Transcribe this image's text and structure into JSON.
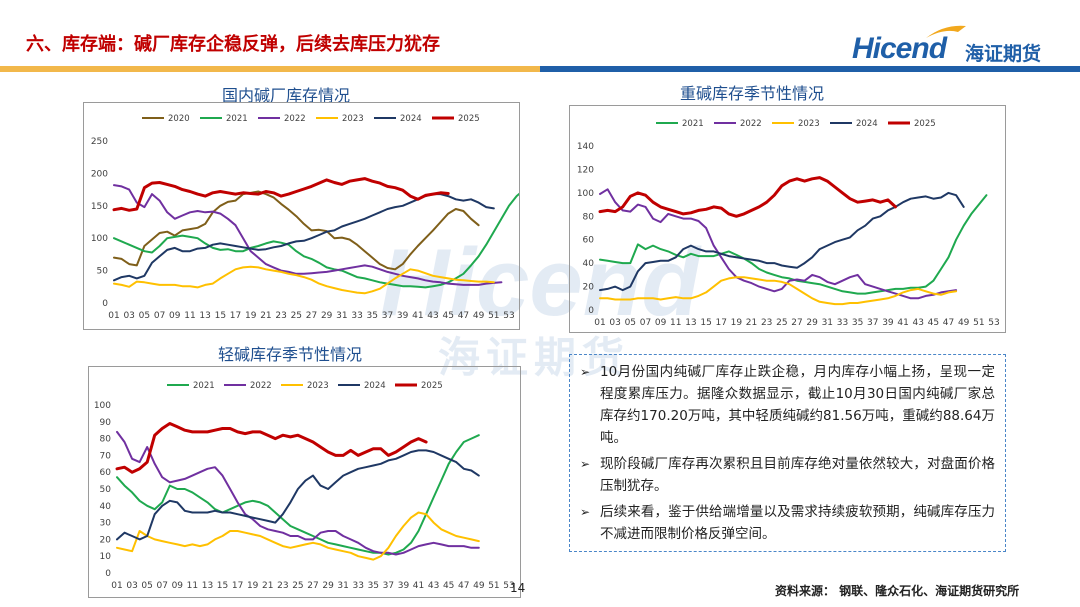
{
  "header": {
    "title": "六、库存端：碱厂库存企稳反弹，后续去库压力犹存",
    "logo_en": "Hicend",
    "logo_cn": "海证期货"
  },
  "watermark": {
    "en": "Hicend",
    "cn": "海证期货"
  },
  "colors": {
    "2020": "#7f5f1a",
    "2021": "#1fa94f",
    "2022": "#7030a0",
    "2023": "#ffc000",
    "2024": "#1f3864",
    "2025": "#c00000",
    "title_red": "#c00000",
    "brand_blue": "#1f5fa8",
    "bar_gold": "#f2b84b"
  },
  "chart_data": [
    {
      "type": "line",
      "title": "国内碱厂库存情况",
      "ylim": [
        0,
        250
      ],
      "yticks": [
        0,
        50,
        100,
        150,
        200,
        250
      ],
      "xticks": [
        "01",
        "03",
        "05",
        "07",
        "09",
        "11",
        "13",
        "15",
        "17",
        "19",
        "21",
        "23",
        "25",
        "27",
        "29",
        "31",
        "33",
        "35",
        "37",
        "39",
        "41",
        "43",
        "45",
        "47",
        "49",
        "51",
        "53"
      ],
      "legend": [
        "2020",
        "2021",
        "2022",
        "2023",
        "2024",
        "2025"
      ],
      "series": [
        {
          "name": "2020",
          "values": [
            70,
            68,
            60,
            58,
            88,
            98,
            108,
            110,
            104,
            112,
            114,
            116,
            122,
            140,
            150,
            156,
            158,
            168,
            170,
            172,
            168,
            163,
            153,
            144,
            134,
            122,
            112,
            113,
            111,
            100,
            101,
            98,
            90,
            80,
            70,
            60,
            54,
            52,
            60,
            75,
            88,
            100,
            112,
            125,
            138,
            145,
            142,
            130,
            120
          ]
        },
        {
          "name": "2021",
          "values": [
            100,
            95,
            90,
            85,
            80,
            78,
            88,
            100,
            102,
            104,
            102,
            100,
            92,
            85,
            82,
            83,
            80,
            80,
            85,
            88,
            92,
            95,
            93,
            90,
            80,
            72,
            68,
            62,
            55,
            52,
            50,
            45,
            40,
            38,
            35,
            32,
            30,
            28,
            26,
            26,
            25,
            24,
            26,
            28,
            32,
            38,
            45,
            58,
            72,
            90,
            110,
            130,
            150,
            165,
            175,
            182
          ]
        },
        {
          "name": "2022",
          "values": [
            182,
            180,
            175,
            155,
            148,
            168,
            158,
            140,
            130,
            135,
            140,
            142,
            140,
            141,
            138,
            130,
            120,
            100,
            80,
            70,
            60,
            55,
            50,
            48,
            45,
            45,
            46,
            47,
            48,
            50,
            52,
            54,
            56,
            58,
            56,
            52,
            48,
            45,
            42,
            40,
            38,
            35,
            33,
            32,
            30,
            29,
            28,
            28,
            28,
            30,
            31,
            32
          ]
        },
        {
          "name": "2023",
          "values": [
            30,
            28,
            25,
            33,
            32,
            30,
            28,
            28,
            28,
            26,
            26,
            24,
            28,
            30,
            38,
            45,
            52,
            55,
            56,
            55,
            52,
            50,
            48,
            45,
            43,
            40,
            36,
            30,
            26,
            23,
            20,
            18,
            16,
            15,
            18,
            22,
            30,
            38,
            45,
            52,
            50,
            46,
            42,
            40,
            38,
            36,
            35,
            34,
            33,
            33,
            32
          ]
        },
        {
          "name": "2024",
          "values": [
            35,
            40,
            42,
            38,
            42,
            62,
            72,
            82,
            85,
            80,
            80,
            84,
            85,
            90,
            92,
            90,
            88,
            86,
            84,
            82,
            83,
            86,
            88,
            92,
            95,
            96,
            100,
            105,
            110,
            112,
            118,
            122,
            126,
            130,
            135,
            140,
            145,
            148,
            150,
            155,
            160,
            165,
            168,
            168,
            165,
            160,
            158,
            160,
            155,
            148,
            146
          ]
        },
        {
          "name": "2025",
          "values": [
            144,
            146,
            143,
            145,
            178,
            185,
            186,
            183,
            180,
            175,
            172,
            168,
            165,
            170,
            172,
            170,
            168,
            170,
            169,
            168,
            172,
            170,
            165,
            168,
            172,
            176,
            180,
            185,
            190,
            186,
            183,
            188,
            190,
            192,
            188,
            185,
            180,
            178,
            174,
            165,
            160,
            166,
            168,
            170,
            169
          ]
        }
      ]
    },
    {
      "type": "line",
      "title": "重碱库存季节性情况",
      "ylim": [
        0,
        140
      ],
      "yticks": [
        0,
        20,
        40,
        60,
        80,
        100,
        120,
        140
      ],
      "xticks": [
        "01",
        "03",
        "05",
        "07",
        "09",
        "11",
        "13",
        "15",
        "17",
        "19",
        "21",
        "23",
        "25",
        "27",
        "29",
        "31",
        "33",
        "35",
        "37",
        "39",
        "41",
        "43",
        "45",
        "47",
        "49",
        "51",
        "53"
      ],
      "legend": [
        "2021",
        "2022",
        "2023",
        "2024",
        "2025"
      ],
      "series": [
        {
          "name": "2021",
          "values": [
            43,
            42,
            41,
            40,
            40,
            56,
            52,
            55,
            52,
            50,
            47,
            45,
            48,
            46,
            46,
            46,
            48,
            50,
            47,
            44,
            40,
            35,
            32,
            30,
            28,
            27,
            25,
            24,
            23,
            22,
            20,
            18,
            16,
            15,
            14,
            14,
            15,
            16,
            17,
            18,
            18,
            19,
            19,
            20,
            25,
            35,
            45,
            60,
            72,
            82,
            90,
            98
          ]
        },
        {
          "name": "2022",
          "values": [
            99,
            103,
            92,
            85,
            84,
            90,
            88,
            78,
            75,
            82,
            80,
            78,
            78,
            76,
            70,
            55,
            45,
            35,
            28,
            25,
            23,
            20,
            18,
            16,
            18,
            25,
            26,
            25,
            30,
            28,
            24,
            22,
            25,
            28,
            30,
            22,
            20,
            18,
            16,
            14,
            12,
            10,
            10,
            12,
            13,
            15,
            16,
            17
          ]
        },
        {
          "name": "2023",
          "values": [
            10,
            10,
            9,
            9,
            9,
            10,
            10,
            10,
            9,
            10,
            11,
            10,
            10,
            12,
            15,
            20,
            25,
            27,
            28,
            28,
            27,
            26,
            25,
            25,
            24,
            22,
            18,
            14,
            10,
            7,
            6,
            5,
            5,
            6,
            6,
            7,
            8,
            9,
            10,
            12,
            15,
            17,
            18,
            16,
            14,
            13,
            15,
            16
          ]
        },
        {
          "name": "2024",
          "values": [
            17,
            18,
            20,
            17,
            20,
            33,
            40,
            41,
            42,
            42,
            45,
            52,
            55,
            52,
            50,
            50,
            48,
            46,
            45,
            44,
            43,
            42,
            40,
            40,
            38,
            37,
            36,
            40,
            45,
            52,
            55,
            58,
            60,
            62,
            68,
            72,
            78,
            80,
            85,
            88,
            92,
            95,
            96,
            97,
            95,
            96,
            100,
            98,
            88
          ]
        },
        {
          "name": "2025",
          "values": [
            84,
            85,
            84,
            88,
            97,
            100,
            98,
            92,
            88,
            86,
            84,
            82,
            83,
            85,
            86,
            88,
            87,
            82,
            80,
            82,
            85,
            88,
            92,
            98,
            106,
            110,
            112,
            110,
            112,
            113,
            110,
            105,
            100,
            95,
            92,
            93,
            94,
            92,
            94,
            88
          ]
        }
      ]
    },
    {
      "type": "line",
      "title": "轻碱库存季节性情况",
      "ylim": [
        0,
        100
      ],
      "yticks": [
        0,
        10,
        20,
        30,
        40,
        50,
        60,
        70,
        80,
        90,
        100
      ],
      "xticks": [
        "01",
        "03",
        "05",
        "07",
        "09",
        "11",
        "13",
        "15",
        "17",
        "19",
        "21",
        "23",
        "25",
        "27",
        "29",
        "31",
        "33",
        "35",
        "37",
        "39",
        "41",
        "43",
        "45",
        "47",
        "49",
        "51",
        "53"
      ],
      "legend": [
        "2021",
        "2022",
        "2023",
        "2024",
        "2025"
      ],
      "series": [
        {
          "name": "2021",
          "values": [
            57,
            52,
            48,
            43,
            40,
            38,
            42,
            52,
            50,
            50,
            48,
            45,
            42,
            38,
            36,
            38,
            40,
            42,
            43,
            42,
            40,
            36,
            32,
            28,
            26,
            24,
            22,
            20,
            18,
            17,
            16,
            15,
            14,
            13,
            12,
            12,
            11,
            12,
            14,
            18,
            25,
            35,
            45,
            55,
            65,
            72,
            78,
            80,
            82
          ]
        },
        {
          "name": "2022",
          "values": [
            84,
            78,
            68,
            66,
            75,
            65,
            57,
            54,
            55,
            56,
            58,
            60,
            62,
            63,
            58,
            50,
            42,
            35,
            32,
            28,
            26,
            25,
            24,
            22,
            22,
            20,
            20,
            24,
            25,
            25,
            22,
            20,
            18,
            15,
            13,
            12,
            12,
            11,
            12,
            14,
            16,
            17,
            18,
            17,
            16,
            16,
            16,
            15,
            15
          ]
        },
        {
          "name": "2023",
          "values": [
            15,
            14,
            13,
            25,
            22,
            20,
            19,
            18,
            17,
            16,
            17,
            16,
            17,
            20,
            22,
            25,
            25,
            24,
            23,
            22,
            20,
            18,
            16,
            15,
            16,
            17,
            18,
            17,
            15,
            14,
            13,
            12,
            10,
            9,
            8,
            10,
            15,
            22,
            28,
            33,
            36,
            35,
            30,
            26,
            24,
            22,
            21,
            20,
            19
          ]
        },
        {
          "name": "2024",
          "values": [
            20,
            24,
            22,
            20,
            22,
            35,
            40,
            43,
            42,
            37,
            36,
            36,
            36,
            37,
            36,
            36,
            35,
            34,
            33,
            32,
            31,
            30,
            35,
            42,
            50,
            55,
            58,
            52,
            50,
            54,
            58,
            60,
            62,
            63,
            64,
            65,
            67,
            68,
            70,
            72,
            73,
            73,
            72,
            70,
            68,
            66,
            62,
            61,
            58
          ]
        },
        {
          "name": "2025",
          "values": [
            62,
            63,
            60,
            62,
            66,
            82,
            86,
            89,
            87,
            85,
            84,
            84,
            84,
            85,
            86,
            86,
            84,
            83,
            84,
            84,
            82,
            80,
            82,
            81,
            82,
            80,
            78,
            75,
            72,
            70,
            70,
            73,
            70,
            72,
            74,
            74,
            70,
            72,
            75,
            78,
            80,
            78
          ]
        }
      ]
    }
  ],
  "bullets": [
    "10月份国内纯碱厂库存止跌企稳，月内库存小幅上扬，呈现一定程度累库压力。据隆众数据显示，截止10月30日国内纯碱厂家总库存约170.20万吨，其中轻质纯碱约81.56万吨，重碱约88.64万吨。",
    "现阶段碱厂库存再次累积且目前库存绝对量依然较大，对盘面价格压制犹存。",
    "后续来看，鉴于供给端增量以及需求持续疲软预期，纯碱库存压力不减进而限制价格反弹空间。"
  ],
  "footer": {
    "source": "资料来源：  钢联、隆众石化、海证期货研究所",
    "page_number": "14"
  }
}
